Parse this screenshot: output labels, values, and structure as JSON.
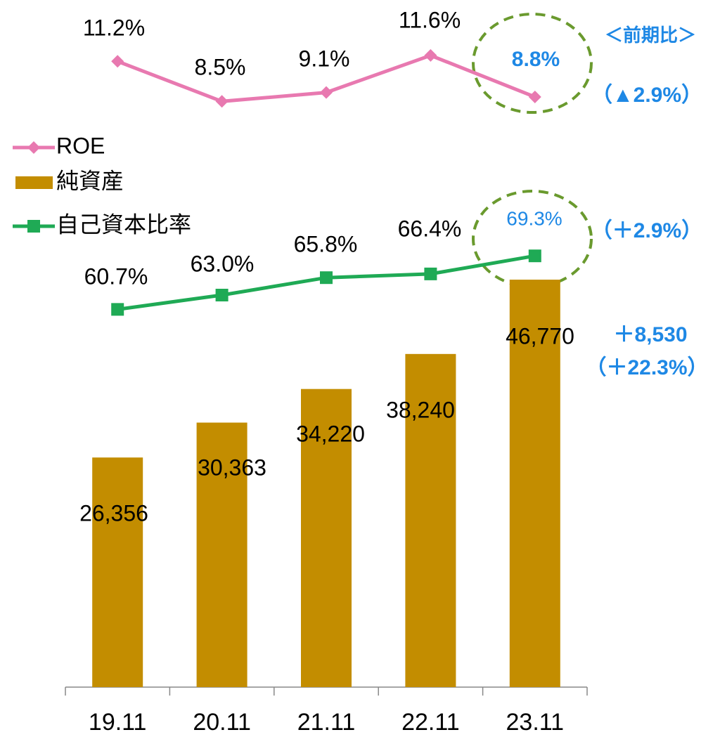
{
  "chart_data": {
    "type": "bar",
    "categories": [
      "19.11",
      "20.11",
      "21.11",
      "22.11",
      "23.11"
    ],
    "ylim": [
      0,
      80000
    ],
    "y2lim": [
      -31,
      16
    ],
    "y3lim": [
      0,
      112
    ],
    "legend": "upper left",
    "series": [
      {
        "name": "ROE",
        "type": "line",
        "color": "#e879b0",
        "marker": "diamond",
        "axis": "y2",
        "values": [
          11.2,
          8.5,
          9.1,
          11.6,
          8.8
        ],
        "value_labels": [
          "11.2%",
          "8.5%",
          "9.1%",
          "11.6%",
          "8.8%"
        ]
      },
      {
        "name": "純資産",
        "type": "bar",
        "color": "#c38d00",
        "values": [
          26356,
          30363,
          34220,
          38240,
          46770
        ],
        "value_labels": [
          "26,356",
          "30,363",
          "34,220",
          "38,240",
          "46,770"
        ]
      },
      {
        "name": "自己資本比率",
        "type": "line",
        "color": "#1faa55",
        "marker": "square",
        "axis": "y3",
        "values": [
          60.7,
          63.0,
          65.8,
          66.4,
          69.3
        ],
        "value_labels": [
          "60.7%",
          "63.0%",
          "65.8%",
          "66.4%",
          "69.3%"
        ]
      }
    ],
    "annotations": [
      "＜前期比＞",
      "（▲2.9%）",
      "（＋2.9%）",
      "＋8,530",
      "（＋22.3%）"
    ]
  }
}
